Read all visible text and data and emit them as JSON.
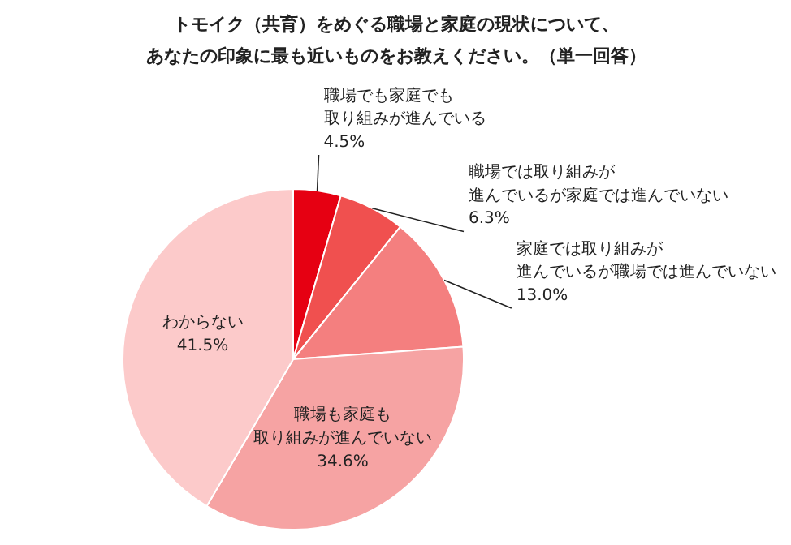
{
  "chart_data": {
    "type": "pie",
    "title": "トモイク（共育）をめぐる職場と家庭の現状について、あなたの印象に最も近いものをお教えください。（単一回答）",
    "categories": [
      "職場でも家庭でも取り組みが進んでいる",
      "職場では取り組みが進んでいるが家庭では進んでいない",
      "家庭では取り組みが進んでいるが職場では進んでいない",
      "職場も家庭も取り組みが進んでいない",
      "わからない"
    ],
    "values": [
      4.5,
      6.3,
      13.0,
      34.6,
      41.5
    ],
    "colors": [
      "#e60012",
      "#f0504f",
      "#f47f7f",
      "#f6a3a3",
      "#fccaca"
    ],
    "value_labels": [
      "4.5%",
      "6.3%",
      "13.0%",
      "34.6%",
      "41.5%"
    ]
  }
}
